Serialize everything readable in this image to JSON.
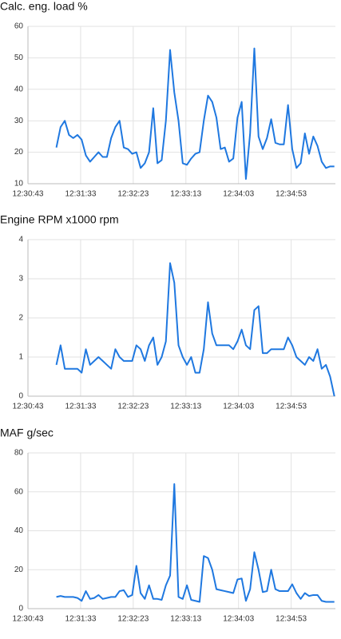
{
  "chart_data": [
    {
      "type": "line",
      "title": "Calc. eng. load  %",
      "color": "#1f78e0",
      "grid": true,
      "xlim": [
        45043,
        45335
      ],
      "xticks": [
        {
          "value": 45043,
          "label": "12:30:43"
        },
        {
          "value": 45093,
          "label": "12:31:33"
        },
        {
          "value": 45143,
          "label": "12:32:23"
        },
        {
          "value": 45193,
          "label": "12:33:13"
        },
        {
          "value": 45243,
          "label": "12:34:03"
        },
        {
          "value": 45293,
          "label": "12:34:53"
        }
      ],
      "ylim": [
        10,
        60
      ],
      "yticks": [
        10,
        20,
        30,
        40,
        50,
        60
      ],
      "x": [
        45070,
        45074,
        45078,
        45082,
        45086,
        45090,
        45094,
        45098,
        45102,
        45106,
        45110,
        45114,
        45118,
        45122,
        45126,
        45130,
        45134,
        45138,
        45142,
        45146,
        45150,
        45154,
        45158,
        45162,
        45166,
        45170,
        45174,
        45178,
        45182,
        45186,
        45190,
        45194,
        45198,
        45202,
        45206,
        45210,
        45214,
        45218,
        45222,
        45226,
        45230,
        45234,
        45238,
        45242,
        45246,
        45250,
        45254,
        45258,
        45262,
        45266,
        45270,
        45274,
        45278,
        45282,
        45286,
        45290,
        45294,
        45298,
        45302,
        45306,
        45310,
        45314,
        45318,
        45322,
        45326,
        45330,
        45334
      ],
      "values": [
        21.5,
        28,
        30,
        25.5,
        24.5,
        25.5,
        24,
        19,
        17,
        18.5,
        20,
        18.5,
        18.5,
        24.5,
        28,
        30,
        21.5,
        21,
        19.5,
        20,
        15,
        16.5,
        20,
        34,
        16.5,
        17.5,
        30,
        52.5,
        39,
        30,
        16.5,
        16,
        18,
        19.5,
        20,
        30,
        38,
        36,
        31,
        21,
        21.5,
        17,
        18,
        31,
        36,
        11.5,
        26,
        53,
        25,
        21,
        24.5,
        30.5,
        23,
        22.5,
        22.5,
        35,
        21,
        15,
        16.5,
        26,
        19.5,
        25,
        22,
        17,
        15,
        15.5,
        15.5
      ]
    },
    {
      "type": "line",
      "title": "Engine RPM x1000  rpm",
      "color": "#1f78e0",
      "grid": true,
      "xlim": [
        45043,
        45335
      ],
      "xticks": [
        {
          "value": 45043,
          "label": "12:30:43"
        },
        {
          "value": 45093,
          "label": "12:31:33"
        },
        {
          "value": 45143,
          "label": "12:32:23"
        },
        {
          "value": 45193,
          "label": "12:33:13"
        },
        {
          "value": 45243,
          "label": "12:34:03"
        },
        {
          "value": 45293,
          "label": "12:34:53"
        }
      ],
      "ylim": [
        0,
        4
      ],
      "yticks": [
        0,
        1,
        2,
        3,
        4
      ],
      "x": [
        45070,
        45074,
        45078,
        45082,
        45086,
        45090,
        45094,
        45098,
        45102,
        45106,
        45110,
        45114,
        45118,
        45122,
        45126,
        45130,
        45134,
        45138,
        45142,
        45146,
        45150,
        45154,
        45158,
        45162,
        45166,
        45170,
        45174,
        45178,
        45182,
        45186,
        45190,
        45194,
        45198,
        45202,
        45206,
        45210,
        45214,
        45218,
        45222,
        45226,
        45230,
        45234,
        45238,
        45242,
        45246,
        45250,
        45254,
        45258,
        45262,
        45266,
        45270,
        45274,
        45278,
        45282,
        45286,
        45290,
        45294,
        45298,
        45302,
        45306,
        45310,
        45314,
        45318,
        45322,
        45326,
        45330,
        45334
      ],
      "values": [
        0.8,
        1.3,
        0.7,
        0.7,
        0.7,
        0.7,
        0.6,
        1.2,
        0.8,
        0.9,
        1.0,
        0.9,
        0.8,
        0.7,
        1.2,
        1.0,
        0.9,
        0.9,
        0.9,
        1.3,
        1.2,
        0.9,
        1.3,
        1.5,
        0.8,
        1.0,
        1.4,
        3.4,
        2.9,
        1.3,
        1.0,
        0.8,
        1.0,
        0.6,
        0.6,
        1.2,
        2.4,
        1.6,
        1.3,
        1.3,
        1.3,
        1.3,
        1.2,
        1.4,
        1.7,
        1.3,
        1.2,
        2.2,
        2.3,
        1.1,
        1.1,
        1.2,
        1.2,
        1.2,
        1.2,
        1.5,
        1.3,
        1.0,
        0.9,
        0.8,
        1.0,
        0.9,
        1.2,
        0.7,
        0.8,
        0.5,
        0
      ]
    },
    {
      "type": "line",
      "title": "MAF  g/sec",
      "color": "#1f78e0",
      "grid": true,
      "xlim": [
        45043,
        45335
      ],
      "xticks": [
        {
          "value": 45043,
          "label": "12:30:43"
        },
        {
          "value": 45093,
          "label": "12:31:33"
        },
        {
          "value": 45143,
          "label": "12:32:23"
        },
        {
          "value": 45193,
          "label": "12:33:13"
        },
        {
          "value": 45243,
          "label": "12:34:03"
        },
        {
          "value": 45293,
          "label": "12:34:53"
        }
      ],
      "ylim": [
        0,
        80
      ],
      "yticks": [
        0,
        20,
        40,
        60,
        80
      ],
      "x": [
        45070,
        45074,
        45078,
        45082,
        45086,
        45090,
        45094,
        45098,
        45102,
        45106,
        45110,
        45114,
        45118,
        45122,
        45126,
        45130,
        45134,
        45138,
        45142,
        45146,
        45150,
        45154,
        45158,
        45162,
        45166,
        45170,
        45174,
        45178,
        45182,
        45186,
        45190,
        45194,
        45198,
        45202,
        45206,
        45210,
        45214,
        45218,
        45222,
        45226,
        45230,
        45234,
        45238,
        45242,
        45246,
        45250,
        45254,
        45258,
        45262,
        45266,
        45270,
        45274,
        45278,
        45282,
        45286,
        45290,
        45294,
        45298,
        45302,
        45306,
        45310,
        45314,
        45318,
        45322,
        45326,
        45330,
        45334
      ],
      "values": [
        6,
        6.5,
        6,
        6,
        6,
        5.5,
        4,
        9,
        5,
        5.5,
        7,
        5,
        5.5,
        6,
        6,
        9,
        9.5,
        6,
        7,
        22,
        8,
        5,
        12,
        5,
        5,
        4.5,
        12,
        17,
        64,
        6,
        5,
        12,
        4.5,
        4,
        3.5,
        27,
        26,
        20,
        10,
        9.5,
        9,
        8.5,
        8,
        15,
        15.5,
        4,
        10,
        29,
        20,
        8.5,
        9,
        20,
        10,
        9,
        9,
        9,
        12.5,
        8,
        5,
        8,
        6.5,
        7,
        7,
        4,
        3.5,
        3.5,
        3.5
      ]
    }
  ]
}
